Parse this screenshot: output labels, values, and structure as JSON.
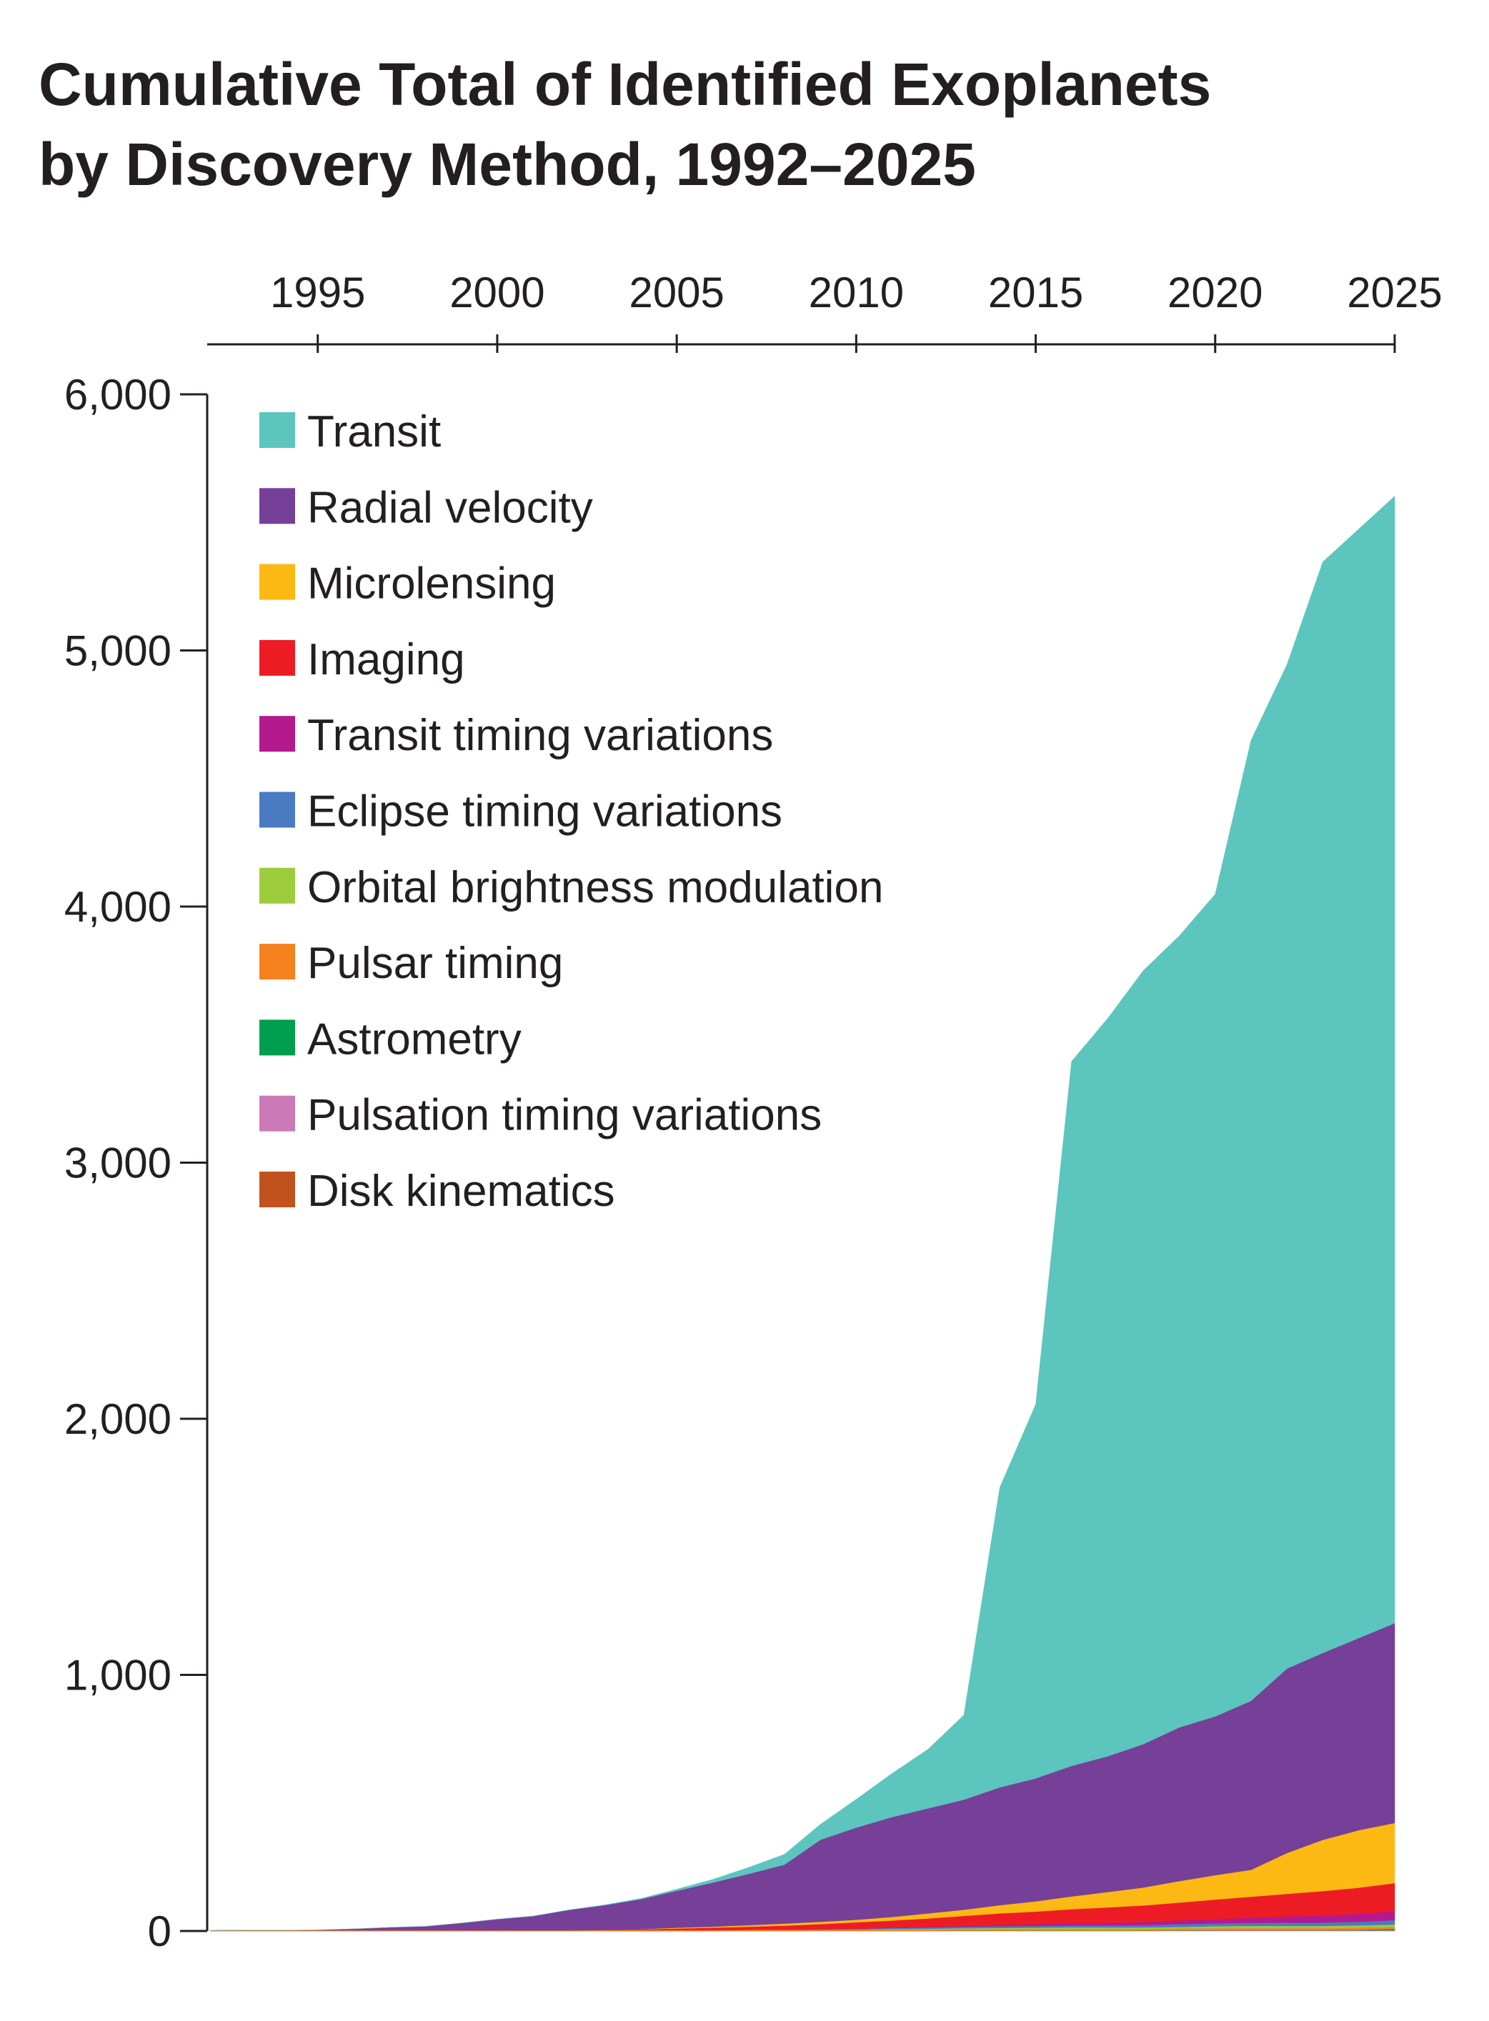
{
  "chart_data": {
    "type": "area",
    "stacked": true,
    "title_lines": [
      "Cumulative Total of Identified Exoplanets",
      "by Discovery Method, 1992–2025"
    ],
    "xlabel": "",
    "ylabel": "",
    "xlim": [
      1992,
      2025
    ],
    "ylim": [
      0,
      6000
    ],
    "x_ticks": [
      1995,
      2000,
      2005,
      2010,
      2015,
      2020,
      2025
    ],
    "x_tick_labels": [
      "1995",
      "2000",
      "2005",
      "2010",
      "2015",
      "2020",
      "2025"
    ],
    "x_axis_position": "top",
    "y_ticks": [
      0,
      1000,
      2000,
      3000,
      4000,
      5000,
      6000
    ],
    "y_tick_labels": [
      "0",
      "1,000",
      "2,000",
      "3,000",
      "4,000",
      "5,000",
      "6,000"
    ],
    "grid": false,
    "legend_position": "top-left",
    "x": [
      1992,
      1993,
      1994,
      1995,
      1996,
      1997,
      1998,
      1999,
      2000,
      2001,
      2002,
      2003,
      2004,
      2005,
      2006,
      2007,
      2008,
      2009,
      2010,
      2011,
      2012,
      2013,
      2014,
      2015,
      2016,
      2017,
      2018,
      2019,
      2020,
      2021,
      2022,
      2023,
      2024,
      2025
    ],
    "series": [
      {
        "name": "Disk kinematics",
        "color": "#c1521e",
        "values": [
          0,
          0,
          0,
          0,
          0,
          0,
          0,
          0,
          0,
          0,
          0,
          0,
          0,
          0,
          0,
          0,
          0,
          0,
          0,
          0,
          0,
          0,
          0,
          0,
          0,
          0,
          0,
          1,
          1,
          1,
          1,
          1,
          1,
          1
        ]
      },
      {
        "name": "Pulsation timing variations",
        "color": "#cc79b8",
        "values": [
          0,
          0,
          0,
          0,
          0,
          0,
          0,
          0,
          0,
          0,
          0,
          0,
          0,
          0,
          0,
          1,
          1,
          1,
          1,
          1,
          1,
          1,
          1,
          1,
          1,
          1,
          1,
          1,
          2,
          2,
          2,
          2,
          2,
          2
        ]
      },
      {
        "name": "Astrometry",
        "color": "#009e4f",
        "values": [
          0,
          0,
          0,
          0,
          0,
          0,
          0,
          0,
          0,
          0,
          0,
          0,
          0,
          0,
          0,
          0,
          0,
          0,
          0,
          0,
          0,
          1,
          1,
          1,
          1,
          1,
          1,
          1,
          1,
          1,
          1,
          1,
          2,
          5
        ]
      },
      {
        "name": "Pulsar timing",
        "color": "#f5821f",
        "values": [
          2,
          3,
          3,
          3,
          3,
          3,
          3,
          3,
          3,
          3,
          3,
          4,
          4,
          4,
          4,
          4,
          4,
          4,
          5,
          5,
          5,
          6,
          6,
          6,
          6,
          6,
          6,
          7,
          7,
          7,
          7,
          7,
          8,
          8
        ]
      },
      {
        "name": "Orbital brightness modulation",
        "color": "#9ccb3b",
        "values": [
          0,
          0,
          0,
          0,
          0,
          0,
          0,
          0,
          0,
          0,
          0,
          0,
          0,
          0,
          0,
          0,
          0,
          0,
          0,
          2,
          3,
          3,
          4,
          5,
          6,
          6,
          6,
          6,
          8,
          9,
          9,
          9,
          9,
          9
        ]
      },
      {
        "name": "Eclipse timing variations",
        "color": "#4a7ac2",
        "values": [
          0,
          0,
          0,
          0,
          0,
          0,
          0,
          0,
          0,
          0,
          0,
          0,
          0,
          0,
          0,
          0,
          0,
          2,
          3,
          4,
          5,
          6,
          7,
          7,
          8,
          8,
          9,
          11,
          11,
          12,
          13,
          13,
          14,
          17
        ]
      },
      {
        "name": "Transit timing variations",
        "color": "#b5198e",
        "values": [
          0,
          0,
          0,
          0,
          0,
          0,
          0,
          0,
          0,
          0,
          0,
          0,
          0,
          0,
          0,
          0,
          0,
          0,
          0,
          1,
          2,
          4,
          5,
          6,
          8,
          10,
          12,
          14,
          17,
          20,
          24,
          28,
          31,
          35
        ]
      },
      {
        "name": "Imaging",
        "color": "#ed1c24",
        "values": [
          0,
          0,
          0,
          0,
          0,
          0,
          0,
          0,
          0,
          0,
          0,
          0,
          2,
          6,
          9,
          12,
          16,
          20,
          25,
          28,
          33,
          38,
          45,
          50,
          55,
          60,
          65,
          70,
          76,
          82,
          88,
          95,
          102,
          110
        ]
      },
      {
        "name": "Microlensing",
        "color": "#fdb913",
        "values": [
          0,
          0,
          0,
          0,
          0,
          0,
          0,
          0,
          0,
          0,
          0,
          0,
          1,
          3,
          4,
          6,
          8,
          9,
          10,
          14,
          20,
          24,
          32,
          40,
          50,
          60,
          70,
          84,
          95,
          105,
          160,
          200,
          225,
          235
        ]
      },
      {
        "name": "Radial velocity",
        "color": "#763f98",
        "values": [
          0,
          0,
          0,
          1,
          5,
          11,
          15,
          28,
          43,
          55,
          79,
          97,
          117,
          144,
          172,
          200,
          230,
          320,
          360,
          390,
          410,
          430,
          460,
          480,
          510,
          530,
          560,
          600,
          620,
          660,
          720,
          730,
          750,
          780
        ]
      },
      {
        "name": "Transit",
        "color": "#5cc5be",
        "values": [
          0,
          0,
          0,
          0,
          0,
          0,
          0,
          0,
          0,
          0,
          0,
          1,
          3,
          6,
          12,
          25,
          40,
          60,
          110,
          170,
          230,
          330,
          1170,
          1460,
          2750,
          2880,
          3020,
          3090,
          3210,
          3750,
          3920,
          4260,
          4330,
          4400
        ]
      }
    ],
    "legend_order": [
      "Transit",
      "Radial velocity",
      "Microlensing",
      "Imaging",
      "Transit timing variations",
      "Eclipse timing variations",
      "Orbital brightness modulation",
      "Pulsar timing",
      "Astrometry",
      "Pulsation timing variations",
      "Disk kinematics"
    ],
    "axis_color": "#231f20"
  }
}
